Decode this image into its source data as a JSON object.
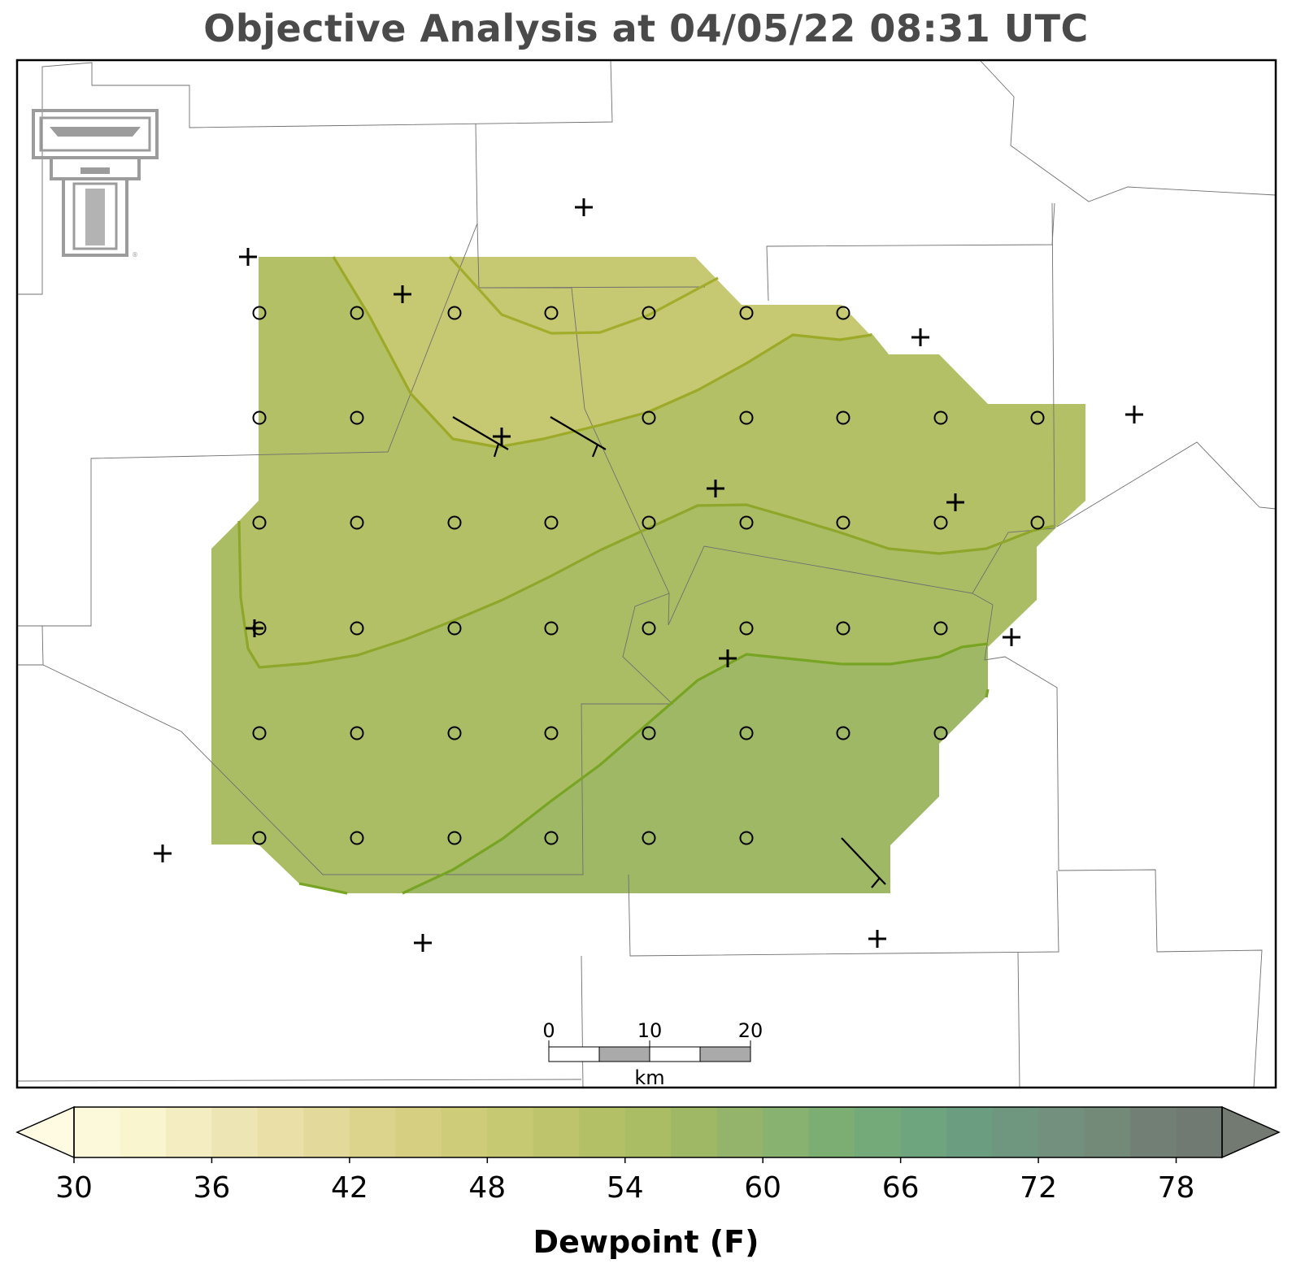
{
  "title": "Objective Analysis at 04/05/22 08:31 UTC",
  "logo": {
    "name": "texas-tech-double-t-logo",
    "mark": "®"
  },
  "scale_bar": {
    "ticks": [
      "0",
      "10",
      "20"
    ],
    "unit": "km"
  },
  "colorbar": {
    "label": "Dewpoint (F)",
    "ticks": [
      30,
      36,
      42,
      48,
      54,
      60,
      66,
      72,
      78
    ],
    "min": 30,
    "max": 80,
    "step": 2,
    "extend": "both",
    "colors": [
      "#fcf9da",
      "#f9f5ce",
      "#f4edc2",
      "#eee5b4",
      "#e9dfa7",
      "#e3d99a",
      "#dcd38d",
      "#d6cf82",
      "#cecb79",
      "#c6c872",
      "#bdc46b",
      "#b4c066",
      "#abbd64",
      "#9fb865",
      "#93b46a",
      "#87b26f",
      "#7cad73",
      "#74a97a",
      "#6ea57e",
      "#6b9e80",
      "#6f967f",
      "#72907d",
      "#738a79",
      "#727f75",
      "#717a72"
    ],
    "under_color": "#fffbe2",
    "over_color": "#737a71"
  },
  "chart_data": {
    "type": "heatmap",
    "title": "Objective Analysis at 04/05/22 08:31 UTC",
    "colorbar_label": "Dewpoint (F)",
    "colorbar_range": [
      30,
      80
    ],
    "contour_interval": 2,
    "analysis_dewpoint_range_F": [
      48,
      56
    ],
    "contour_lines_F": [
      48,
      50,
      52,
      54
    ],
    "shading_bands_F": [
      {
        "range": [
          48,
          50
        ],
        "color": "#c6c872"
      },
      {
        "range": [
          50,
          52
        ],
        "color": "#b4c066"
      },
      {
        "range": [
          52,
          54
        ],
        "color": "#abbd64"
      },
      {
        "range": [
          54,
          56
        ],
        "color": "#9fb865"
      }
    ],
    "grid_points": 47,
    "station_markers": 17,
    "wind_barbs": 3,
    "legend": "bottom"
  }
}
